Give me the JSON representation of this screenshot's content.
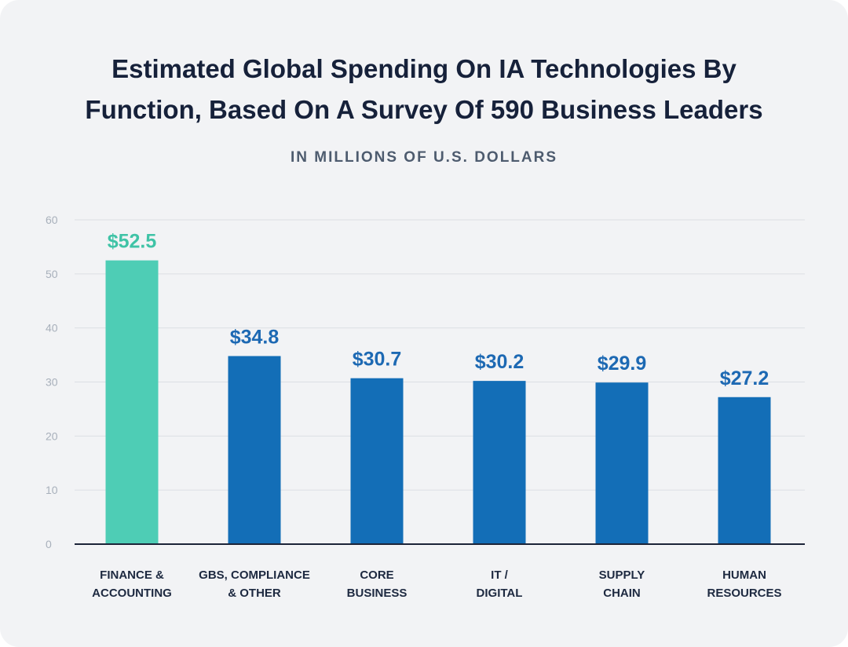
{
  "colors": {
    "highlight": "#4ecdb5",
    "highlight_label": "#3fc3a6",
    "bar": "#136eb7",
    "bar_label": "#1d69b3",
    "axis": "#1c2438",
    "grid": "#dcdfe4"
  },
  "chart_data": {
    "type": "bar",
    "title": "Estimated Global Spending On IA Technologies By\nFunction, Based On A Survey Of 590 Business Leaders",
    "subtitle": "IN MILLIONS OF U.S. DOLLARS",
    "xlabel": "",
    "ylabel": "",
    "ylim": [
      0,
      60
    ],
    "yticks": [
      0,
      10,
      20,
      30,
      40,
      50,
      60
    ],
    "grid": true,
    "categories": [
      [
        "FINANCE &",
        "ACCOUNTING"
      ],
      [
        "GBS, COMPLIANCE",
        "& OTHER"
      ],
      [
        "CORE",
        "BUSINESS"
      ],
      [
        "IT /",
        "DIGITAL"
      ],
      [
        "SUPPLY",
        "CHAIN"
      ],
      [
        "HUMAN",
        "RESOURCES"
      ]
    ],
    "values": [
      52.5,
      34.8,
      30.7,
      30.2,
      29.9,
      27.2
    ],
    "value_labels": [
      "$52.5",
      "$34.8",
      "$30.7",
      "$30.2",
      "$29.9",
      "$27.2"
    ],
    "highlighted_index": 0
  }
}
